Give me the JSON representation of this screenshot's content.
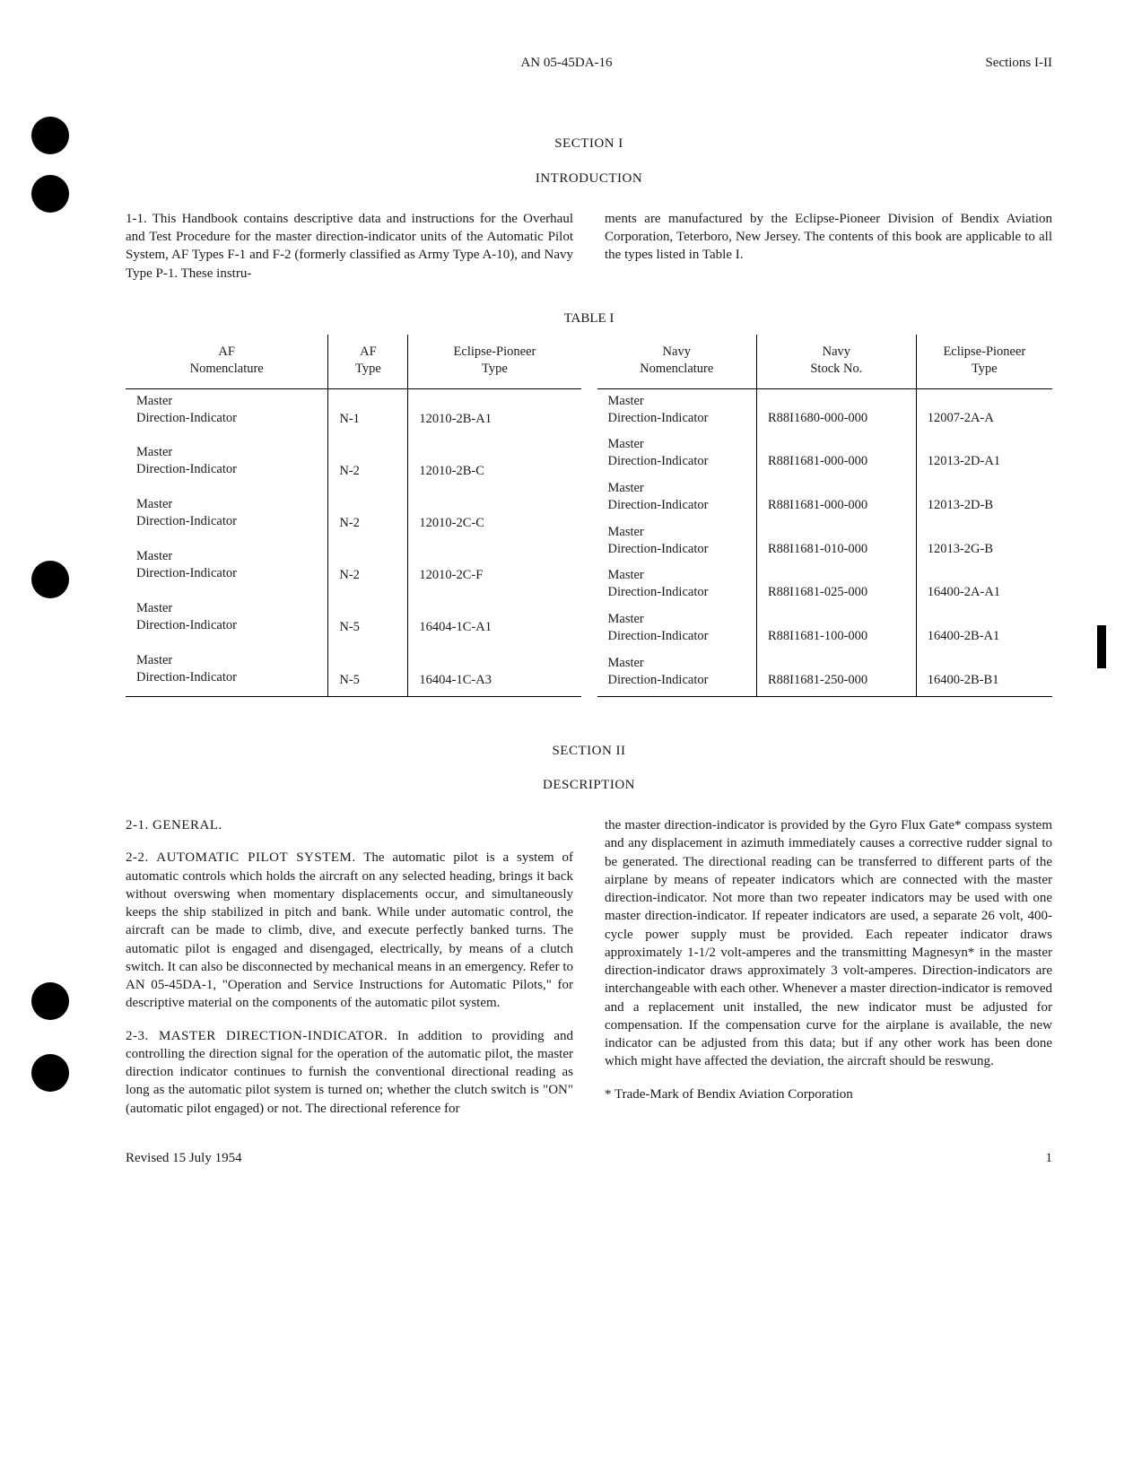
{
  "header": {
    "doc_number": "AN 05-45DA-16",
    "sections_label": "Sections I-II"
  },
  "section1": {
    "heading": "SECTION I",
    "subheading": "INTRODUCTION",
    "para1_col1": "1-1. This Handbook contains descriptive data and instructions for the Overhaul and Test Procedure for the master direction-indicator units of the Automatic Pilot System, AF Types F-1 and F-2 (formerly classified as Army Type A-10), and Navy Type P-1. These instru-",
    "para1_col2": "ments are manufactured by the Eclipse-Pioneer Division of Bendix Aviation Corporation, Teterboro, New Jersey. The contents of this book are applicable to all the types listed in Table I."
  },
  "table": {
    "label": "TABLE I",
    "left": {
      "headers": [
        "AF\nNomenclature",
        "AF\nType",
        "Eclipse-Pioneer\nType"
      ],
      "rows": [
        [
          "Master\nDirection-Indicator",
          "N-1",
          "12010-2B-A1"
        ],
        [
          "Master\nDirection-Indicator",
          "N-2",
          "12010-2B-C"
        ],
        [
          "Master\nDirection-Indicator",
          "N-2",
          "12010-2C-C"
        ],
        [
          "Master\nDirection-Indicator",
          "N-2",
          "12010-2C-F"
        ],
        [
          "Master\nDirection-Indicator",
          "N-5",
          "16404-1C-A1"
        ],
        [
          "Master\nDirection-Indicator",
          "N-5",
          "16404-1C-A3"
        ]
      ]
    },
    "right": {
      "headers": [
        "Navy\nNomenclature",
        "Navy\nStock No.",
        "Eclipse-Pioneer\nType"
      ],
      "rows": [
        [
          "Master\nDirection-Indicator",
          "R88I1680-000-000",
          "12007-2A-A"
        ],
        [
          "Master\nDirection-Indicator",
          "R88I1681-000-000",
          "12013-2D-A1"
        ],
        [
          "Master\nDirection-Indicator",
          "R88I1681-000-000",
          "12013-2D-B"
        ],
        [
          "Master\nDirection-Indicator",
          "R88I1681-010-000",
          "12013-2G-B"
        ],
        [
          "Master\nDirection-Indicator",
          "R88I1681-025-000",
          "16400-2A-A1"
        ],
        [
          "Master\nDirection-Indicator",
          "R88I1681-100-000",
          "16400-2B-A1"
        ],
        [
          "Master\nDirection-Indicator",
          "R88I1681-250-000",
          "16400-2B-B1"
        ]
      ]
    }
  },
  "section2": {
    "heading": "SECTION II",
    "subheading": "DESCRIPTION",
    "para21_heading": "2-1. GENERAL.",
    "para22_heading": "2-2. AUTOMATIC PILOT SYSTEM.",
    "para22_text": " The automatic pilot is a system of automatic controls which holds the aircraft on any selected heading, brings it back without overswing when momentary displacements occur, and simultaneously keeps the ship stabilized in pitch and bank. While under automatic control, the aircraft can be made to climb, dive, and execute perfectly banked turns. The automatic pilot is engaged and disengaged, electrically, by means of a clutch switch. It can also be disconnected by mechanical means in an emergency. Refer to AN 05-45DA-1, \"Operation and Service Instructions for Automatic Pilots,\" for descriptive material on the components of the automatic pilot system.",
    "para23_heading": "2-3. MASTER DIRECTION-INDICATOR.",
    "para23_text": " In addition to providing and controlling the direction signal for the operation of the automatic pilot, the master direction indicator continues to furnish the conventional directional reading as long as the automatic pilot system is turned on; whether the clutch switch is \"ON\" (automatic pilot engaged) or not. The directional reference for",
    "col2_text": "the master direction-indicator is provided by the Gyro Flux Gate* compass system and any displacement in azimuth immediately causes a corrective rudder signal to be generated. The directional reading can be transferred to different parts of the airplane by means of repeater indicators which are connected with the master direction-indicator. Not more than two repeater indicators may be used with one master direction-indicator. If repeater indicators are used, a separate 26 volt, 400-cycle power supply must be provided. Each repeater indicator draws approximately 1-1/2 volt-amperes and the transmitting Magnesyn* in the master direction-indicator draws approximately 3 volt-amperes. Direction-indicators are interchangeable with each other. Whenever a master direction-indicator is removed and a replacement unit installed, the new indicator must be adjusted for compensation. If the compensation curve for the airplane is available, the new indicator can be adjusted from this data; but if any other work has been done which might have affected the deviation, the aircraft should be reswung.",
    "footnote": "* Trade-Mark of Bendix Aviation Corporation"
  },
  "footer": {
    "revised": "Revised 15 July 1954",
    "page": "1"
  },
  "holes": {
    "positions": [
      130,
      195,
      625,
      1095,
      1175
    ]
  }
}
